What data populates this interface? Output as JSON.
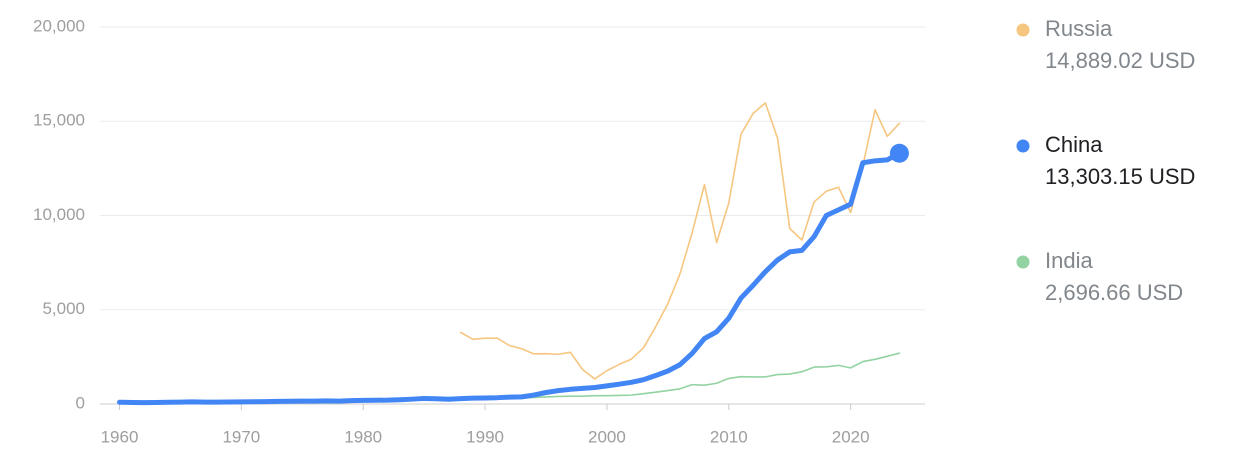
{
  "chart_data": {
    "type": "line",
    "x": [
      1960,
      1961,
      1962,
      1963,
      1964,
      1965,
      1966,
      1967,
      1968,
      1969,
      1970,
      1971,
      1972,
      1973,
      1974,
      1975,
      1976,
      1977,
      1978,
      1979,
      1980,
      1981,
      1982,
      1983,
      1984,
      1985,
      1986,
      1987,
      1988,
      1989,
      1990,
      1991,
      1992,
      1993,
      1994,
      1995,
      1996,
      1997,
      1998,
      1999,
      2000,
      2001,
      2002,
      2003,
      2004,
      2005,
      2006,
      2007,
      2008,
      2009,
      2010,
      2011,
      2012,
      2013,
      2014,
      2015,
      2016,
      2017,
      2018,
      2019,
      2020,
      2021,
      2022,
      2023,
      2024
    ],
    "xlim": [
      1958.4,
      2026.1
    ],
    "xticks": [
      1960,
      1970,
      1980,
      1990,
      2000,
      2010,
      2020
    ],
    "ylim": [
      0,
      20000
    ],
    "yticks": [
      0,
      {
        "value": 5000,
        "label": "5,000"
      },
      {
        "value": 10000,
        "label": "10,000"
      },
      {
        "value": 15000,
        "label": "15,000"
      },
      {
        "value": 20000,
        "label": "20,000"
      }
    ],
    "grid": true,
    "legend": "right",
    "series": [
      {
        "name": "Russia",
        "color": "#f6c681",
        "width": 1.6,
        "values": [
          null,
          null,
          null,
          null,
          null,
          null,
          null,
          null,
          null,
          null,
          null,
          null,
          null,
          null,
          null,
          null,
          null,
          null,
          null,
          null,
          null,
          null,
          null,
          null,
          null,
          null,
          null,
          null,
          3800,
          3430,
          3490,
          3490,
          3100,
          2930,
          2660,
          2670,
          2640,
          2740,
          1830,
          1330,
          1770,
          2100,
          2380,
          2980,
          4100,
          5320,
          6920,
          9100,
          11640,
          8560,
          10670,
          14310,
          15420,
          15970,
          14100,
          9310,
          8700,
          10720,
          11290,
          11500,
          10160,
          12650,
          15610,
          14200,
          14889.02
        ],
        "value_labels": [
          null,
          null,
          null,
          null,
          null,
          null,
          null,
          null,
          null,
          null,
          null,
          null,
          null,
          null,
          null,
          null,
          null,
          null,
          null,
          null,
          null,
          null,
          null,
          null,
          null,
          null,
          null,
          null,
          null,
          null,
          null,
          null,
          null,
          null,
          null,
          null,
          null,
          null,
          null,
          null,
          null,
          null,
          null,
          null,
          null,
          null,
          null,
          null,
          null,
          null,
          null,
          null,
          null,
          null,
          null,
          null,
          null,
          null,
          null,
          null,
          null,
          null,
          null,
          null,
          "14,889.02 USD"
        ]
      },
      {
        "name": "China",
        "color": "#4285f4",
        "width": 5,
        "values": [
          90,
          80,
          75,
          80,
          90,
          100,
          110,
          100,
          100,
          105,
          115,
          120,
          125,
          140,
          145,
          155,
          150,
          165,
          155,
          180,
          195,
          200,
          205,
          225,
          255,
          295,
          280,
          250,
          285,
          310,
          320,
          335,
          365,
          380,
          475,
          610,
          710,
          780,
          830,
          875,
          960,
          1050,
          1150,
          1290,
          1510,
          1750,
          2090,
          2690,
          3470,
          3830,
          4550,
          5620,
          6300,
          7020,
          7640,
          8070,
          8150,
          8880,
          10000,
          10300,
          10600,
          12800,
          12900,
          12950,
          13303.15
        ],
        "value_labels": [
          null,
          null,
          null,
          null,
          null,
          null,
          null,
          null,
          null,
          null,
          null,
          null,
          null,
          null,
          null,
          null,
          null,
          null,
          null,
          null,
          null,
          null,
          null,
          null,
          null,
          null,
          null,
          null,
          null,
          null,
          null,
          null,
          null,
          null,
          null,
          null,
          null,
          null,
          null,
          null,
          null,
          null,
          null,
          null,
          null,
          null,
          null,
          null,
          null,
          null,
          null,
          null,
          null,
          null,
          null,
          null,
          null,
          null,
          null,
          null,
          null,
          null,
          null,
          null,
          "13,303.15 USD"
        ]
      },
      {
        "name": "India",
        "color": "#93d3a2",
        "width": 1.6,
        "values": [
          82,
          85,
          89,
          101,
          116,
          119,
          90,
          96,
          100,
          107,
          112,
          118,
          123,
          144,
          163,
          158,
          161,
          186,
          206,
          224,
          266,
          270,
          274,
          291,
          277,
          297,
          310,
          340,
          354,
          347,
          368,
          303,
          316,
          301,
          346,
          374,
          400,
          415,
          413,
          442,
          443,
          452,
          471,
          546,
          627,
          714,
          807,
          1028,
          999,
          1102,
          1358,
          1450,
          1434,
          1438,
          1560,
          1590,
          1714,
          1958,
          1974,
          2050,
          1916,
          2250,
          2370,
          2530,
          2696.66
        ],
        "value_labels": [
          null,
          null,
          null,
          null,
          null,
          null,
          null,
          null,
          null,
          null,
          null,
          null,
          null,
          null,
          null,
          null,
          null,
          null,
          null,
          null,
          null,
          null,
          null,
          null,
          null,
          null,
          null,
          null,
          null,
          null,
          null,
          null,
          null,
          null,
          null,
          null,
          null,
          null,
          null,
          null,
          null,
          null,
          null,
          null,
          null,
          null,
          null,
          null,
          null,
          null,
          null,
          null,
          null,
          null,
          null,
          null,
          null,
          null,
          null,
          null,
          null,
          null,
          null,
          null,
          "2,696.66 USD"
        ]
      }
    ]
  }
}
